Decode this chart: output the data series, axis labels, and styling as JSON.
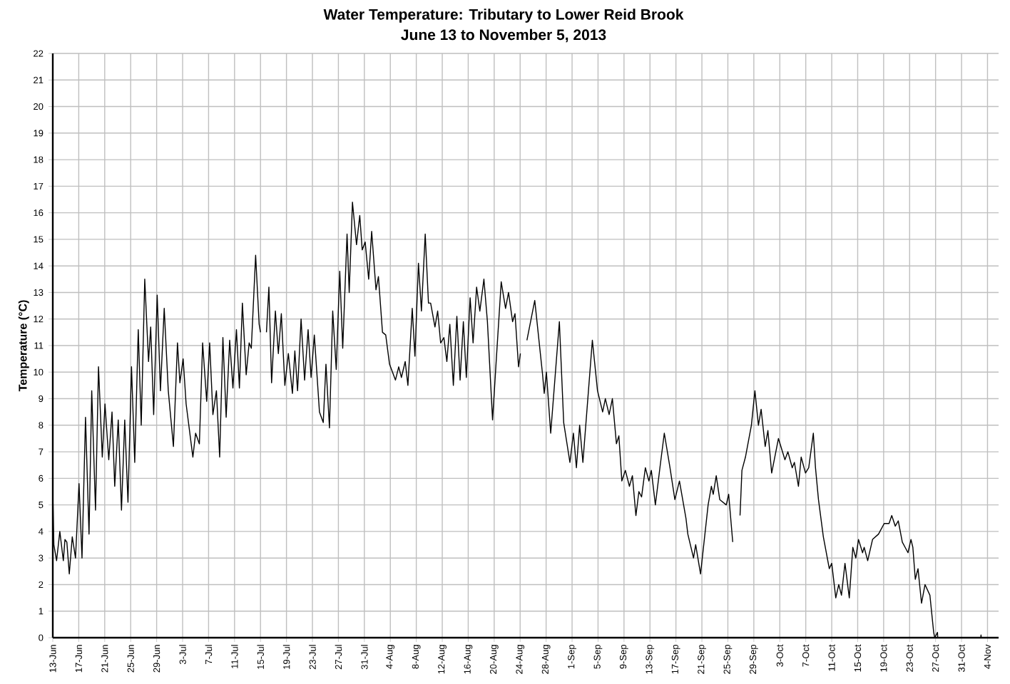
{
  "chart_data": {
    "type": "line",
    "title": "Water Temperature: Tributary to Lower Reid Brook",
    "subtitle": "June 13 to November 5, 2013",
    "ylabel": "Temperature (°C)",
    "color": "#000000",
    "grid": true,
    "xlim": [
      "2013-06-13",
      "2013-11-05T17:00"
    ],
    "ylim": [
      0,
      22
    ],
    "yticks": [
      0,
      1,
      2,
      3,
      4,
      5,
      6,
      7,
      8,
      9,
      10,
      11,
      12,
      13,
      14,
      15,
      16,
      17,
      18,
      19,
      20,
      21,
      22
    ],
    "xticks": [
      {
        "value": "2013-06-13",
        "label": "13-Jun"
      },
      {
        "value": "2013-06-17",
        "label": "17-Jun"
      },
      {
        "value": "2013-06-21",
        "label": "21-Jun"
      },
      {
        "value": "2013-06-25",
        "label": "25-Jun"
      },
      {
        "value": "2013-06-29",
        "label": "29-Jun"
      },
      {
        "value": "2013-07-03",
        "label": "3-Jul"
      },
      {
        "value": "2013-07-07",
        "label": "7-Jul"
      },
      {
        "value": "2013-07-11",
        "label": "11-Jul"
      },
      {
        "value": "2013-07-15",
        "label": "15-Jul"
      },
      {
        "value": "2013-07-19",
        "label": "19-Jul"
      },
      {
        "value": "2013-07-23",
        "label": "23-Jul"
      },
      {
        "value": "2013-07-27",
        "label": "27-Jul"
      },
      {
        "value": "2013-07-31",
        "label": "31-Jul"
      },
      {
        "value": "2013-08-04",
        "label": "4-Aug"
      },
      {
        "value": "2013-08-08",
        "label": "8-Aug"
      },
      {
        "value": "2013-08-12",
        "label": "12-Aug"
      },
      {
        "value": "2013-08-16",
        "label": "16-Aug"
      },
      {
        "value": "2013-08-20",
        "label": "20-Aug"
      },
      {
        "value": "2013-08-24",
        "label": "24-Aug"
      },
      {
        "value": "2013-08-28",
        "label": "28-Aug"
      },
      {
        "value": "2013-09-01",
        "label": "1-Sep"
      },
      {
        "value": "2013-09-05",
        "label": "5-Sep"
      },
      {
        "value": "2013-09-09",
        "label": "9-Sep"
      },
      {
        "value": "2013-09-13",
        "label": "13-Sep"
      },
      {
        "value": "2013-09-17",
        "label": "17-Sep"
      },
      {
        "value": "2013-09-21",
        "label": "21-Sep"
      },
      {
        "value": "2013-09-25",
        "label": "25-Sep"
      },
      {
        "value": "2013-09-29",
        "label": "29-Sep"
      },
      {
        "value": "2013-10-03",
        "label": "3-Oct"
      },
      {
        "value": "2013-10-07",
        "label": "7-Oct"
      },
      {
        "value": "2013-10-11",
        "label": "11-Oct"
      },
      {
        "value": "2013-10-15",
        "label": "15-Oct"
      },
      {
        "value": "2013-10-19",
        "label": "19-Oct"
      },
      {
        "value": "2013-10-23",
        "label": "23-Oct"
      },
      {
        "value": "2013-10-27",
        "label": "27-Oct"
      },
      {
        "value": "2013-10-31",
        "label": "31-Oct"
      },
      {
        "value": "2013-11-04",
        "label": "4-Nov"
      }
    ],
    "x": [
      "2013-06-13T00:00",
      "2013-06-13T04:00",
      "2013-06-13T14:00",
      "2013-06-14T02:00",
      "2013-06-14T15:00",
      "2013-06-14T21:00",
      "2013-06-15T04:00",
      "2013-06-15T13:00",
      "2013-06-16T00:00",
      "2013-06-16T12:00",
      "2013-06-17T01:00",
      "2013-06-17T12:00",
      "2013-06-18T01:00",
      "2013-06-18T14:00",
      "2013-06-19T00:00",
      "2013-06-19T14:00",
      "2013-06-20T01:00",
      "2013-06-20T15:00",
      "2013-06-21T01:00",
      "2013-06-21T15:00",
      "2013-06-22T03:00",
      "2013-06-22T13:00",
      "2013-06-23T02:00",
      "2013-06-23T14:00",
      "2013-06-24T02:00",
      "2013-06-24T14:00",
      "2013-06-25T03:00",
      "2013-06-25T15:00",
      "2013-06-26T04:00",
      "2013-06-26T15:00",
      "2013-06-27T04:00",
      "2013-06-27T18:00",
      "2013-06-28T02:00",
      "2013-06-28T13:00",
      "2013-06-29T02:00",
      "2013-06-29T14:00",
      "2013-06-30T04:00",
      "2013-06-30T19:00",
      "2013-07-01T14:00",
      "2013-07-02T05:00",
      "2013-07-02T14:00",
      "2013-07-03T02:00",
      "2013-07-03T13:00",
      "2013-07-04T14:00",
      "2013-07-05T00:00",
      "2013-07-05T14:00",
      "2013-07-06T02:00",
      "2013-07-06T17:00",
      "2013-07-07T04:00",
      "2013-07-07T16:00",
      "2013-07-08T05:00",
      "2013-07-08T17:00",
      "2013-07-09T05:00",
      "2013-07-09T17:00",
      "2013-07-10T06:00",
      "2013-07-10T18:00",
      "2013-07-11T07:00",
      "2013-07-11T18:00",
      "2013-07-12T05:00",
      "2013-07-12T19:00",
      "2013-07-13T06:00",
      "2013-07-13T14:00",
      "2013-07-14T06:00",
      "2013-07-14T19:00",
      "2013-07-15T00:00",
      "2013-07-15T11:00",
      "2013-07-15T22:00",
      "2013-07-16T07:00",
      "2013-07-16T17:00",
      "2013-07-17T07:00",
      "2013-07-17T18:00",
      "2013-07-18T05:00",
      "2013-07-18T18:00",
      "2013-07-19T07:00",
      "2013-07-19T22:00",
      "2013-07-20T07:00",
      "2013-07-20T17:00",
      "2013-07-21T06:00",
      "2013-07-21T19:00",
      "2013-07-22T08:00",
      "2013-07-22T19:00",
      "2013-07-23T07:00",
      "2013-07-24T02:00",
      "2013-07-24T16:00",
      "2013-07-25T02:00",
      "2013-07-25T15:00",
      "2013-07-26T03:00",
      "2013-07-26T16:00",
      "2013-07-27T05:00",
      "2013-07-27T16:00",
      "2013-07-28T08:00",
      "2013-07-28T16:00",
      "2013-07-29T04:00",
      "2013-07-29T19:00",
      "2013-07-30T07:00",
      "2013-07-30T16:00",
      "2013-07-31T03:00",
      "2013-07-31T16:00",
      "2013-08-01T03:00",
      "2013-08-01T19:00",
      "2013-08-02T04:00",
      "2013-08-02T19:00",
      "2013-08-03T07:00",
      "2013-08-03T21:00",
      "2013-08-04T19:00",
      "2013-08-05T07:00",
      "2013-08-05T17:00",
      "2013-08-06T07:00",
      "2013-08-06T17:00",
      "2013-08-07T09:00",
      "2013-08-07T19:00",
      "2013-08-08T08:00",
      "2013-08-08T19:00",
      "2013-08-09T09:00",
      "2013-08-09T21:00",
      "2013-08-10T05:00",
      "2013-08-10T21:00",
      "2013-08-11T07:00",
      "2013-08-11T18:00",
      "2013-08-12T06:00",
      "2013-08-12T17:00",
      "2013-08-13T04:00",
      "2013-08-13T17:00",
      "2013-08-14T06:00",
      "2013-08-14T18:00",
      "2013-08-15T06:00",
      "2013-08-15T17:00",
      "2013-08-16T07:00",
      "2013-08-16T18:00",
      "2013-08-17T07:00",
      "2013-08-17T19:00",
      "2013-08-18T10:00",
      "2013-08-18T23:00",
      "2013-08-19T18:00",
      "2013-08-20T08:00",
      "2013-08-21T02:00",
      "2013-08-21T18:00",
      "2013-08-22T05:00",
      "2013-08-22T20:00",
      "2013-08-23T05:00",
      "2013-08-23T18:00",
      "2013-08-24T01:00",
      "2013-08-24T13:00",
      "2013-08-25T01:00",
      "2013-08-26T06:00",
      "2013-08-27T11:00",
      "2013-08-27T17:00",
      "2013-08-28T01:00",
      "2013-08-28T17:00",
      "2013-08-30T01:00",
      "2013-08-30T17:00",
      "2013-08-31T16:00",
      "2013-09-01T05:00",
      "2013-09-01T16:00",
      "2013-09-02T04:00",
      "2013-09-02T16:00",
      "2013-09-04T03:00",
      "2013-09-04T22:00",
      "2013-09-05T17:00",
      "2013-09-06T03:00",
      "2013-09-06T17:00",
      "2013-09-07T05:00",
      "2013-09-07T20:00",
      "2013-09-08T05:00",
      "2013-09-08T16:00",
      "2013-09-09T05:00",
      "2013-09-09T20:00",
      "2013-09-10T07:00",
      "2013-09-10T20:00",
      "2013-09-11T07:00",
      "2013-09-11T17:00",
      "2013-09-12T07:00",
      "2013-09-12T20:00",
      "2013-09-13T05:00",
      "2013-09-13T20:00",
      "2013-09-14T14:00",
      "2013-09-15T05:00",
      "2013-09-16T02:00",
      "2013-09-16T20:00",
      "2013-09-17T13:00",
      "2013-09-18T13:00",
      "2013-09-18T20:00",
      "2013-09-19T17:00",
      "2013-09-20T01:00",
      "2013-09-20T19:00",
      "2013-09-21T23:00",
      "2013-09-22T11:00",
      "2013-09-22T18:00",
      "2013-09-23T05:00",
      "2013-09-23T18:00",
      "2013-09-24T18:00",
      "2013-09-25T03:00",
      "2013-09-25T18:00",
      "2013-09-26T09:00",
      "2013-09-26T21:00",
      "2013-09-27T04:00",
      "2013-09-27T17:00",
      "2013-09-28T15:00",
      "2013-09-29T04:00",
      "2013-09-29T17:00",
      "2013-09-30T03:00",
      "2013-09-30T18:00",
      "2013-10-01T04:00",
      "2013-10-01T18:00",
      "2013-10-02T19:00",
      "2013-10-03T19:00",
      "2013-10-04T06:00",
      "2013-10-04T22:00",
      "2013-10-05T06:00",
      "2013-10-05T21:00",
      "2013-10-06T07:00",
      "2013-10-06T23:00",
      "2013-10-07T11:00",
      "2013-10-08T04:00",
      "2013-10-08T12:00",
      "2013-10-08T23:00",
      "2013-10-09T17:00",
      "2013-10-10T15:00",
      "2013-10-11T00:00",
      "2013-10-11T15:00",
      "2013-10-12T02:00",
      "2013-10-12T12:00",
      "2013-10-13T01:00",
      "2013-10-13T17:00",
      "2013-10-14T06:00",
      "2013-10-14T17:00",
      "2013-10-15T03:00",
      "2013-10-15T18:00",
      "2013-10-16T00:00",
      "2013-10-16T13:00",
      "2013-10-17T07:00",
      "2013-10-18T05:00",
      "2013-10-19T02:00",
      "2013-10-19T20:00",
      "2013-10-20T06:00",
      "2013-10-20T19:00",
      "2013-10-21T06:00",
      "2013-10-21T21:00",
      "2013-10-22T18:00",
      "2013-10-23T05:00",
      "2013-10-23T12:00",
      "2013-10-23T21:00",
      "2013-10-24T07:00",
      "2013-10-24T20:00",
      "2013-10-25T09:00",
      "2013-10-26T03:00",
      "2013-10-26T17:00",
      "2013-10-26T21:00",
      "2013-10-27T07:00",
      "2013-10-27T08:00",
      "2013-11-02T23:00",
      "2013-11-03T00:00",
      "2013-11-03T01:00",
      "2013-11-05T04:00"
    ],
    "values": [
      5.5,
      3.5,
      2.9,
      4.0,
      2.9,
      3.7,
      3.6,
      2.4,
      3.8,
      3.0,
      5.8,
      3.0,
      8.3,
      3.9,
      9.3,
      4.8,
      10.2,
      6.8,
      8.8,
      6.7,
      8.5,
      5.7,
      8.2,
      4.8,
      8.2,
      5.1,
      10.2,
      6.6,
      11.6,
      8.0,
      13.5,
      10.4,
      11.7,
      8.4,
      12.9,
      9.3,
      12.4,
      9.3,
      7.2,
      11.1,
      9.6,
      10.5,
      8.8,
      6.8,
      7.7,
      7.3,
      11.1,
      8.9,
      11.1,
      8.4,
      9.3,
      6.8,
      11.3,
      8.3,
      11.2,
      9.4,
      11.6,
      9.4,
      12.6,
      9.9,
      11.1,
      10.9,
      14.4,
      11.8,
      11.5,
      null,
      11.5,
      13.2,
      9.6,
      12.3,
      10.7,
      12.2,
      9.5,
      10.7,
      9.2,
      10.8,
      9.3,
      12.0,
      9.7,
      11.6,
      9.8,
      11.4,
      8.5,
      8.1,
      10.3,
      7.9,
      12.3,
      10.1,
      13.8,
      10.9,
      15.2,
      13.0,
      16.4,
      14.8,
      15.9,
      14.6,
      14.9,
      13.5,
      15.3,
      13.1,
      13.6,
      11.5,
      11.4,
      10.3,
      9.7,
      10.2,
      9.8,
      10.4,
      9.5,
      12.4,
      10.6,
      14.1,
      12.3,
      15.2,
      12.6,
      12.6,
      11.7,
      12.3,
      11.1,
      11.3,
      10.4,
      11.8,
      9.5,
      12.1,
      9.7,
      11.9,
      9.8,
      12.8,
      11.1,
      13.2,
      12.3,
      13.5,
      11.9,
      8.2,
      10.5,
      13.4,
      12.4,
      13.0,
      11.9,
      12.2,
      10.2,
      10.7,
      null,
      11.2,
      12.7,
      9.9,
      9.2,
      10.0,
      7.7,
      11.9,
      8.1,
      6.6,
      7.7,
      6.4,
      8.0,
      6.6,
      11.2,
      9.3,
      8.5,
      9.0,
      8.4,
      9.0,
      7.3,
      7.6,
      5.9,
      6.3,
      5.7,
      6.1,
      4.6,
      5.5,
      5.3,
      6.4,
      5.9,
      6.3,
      5.0,
      6.5,
      7.7,
      6.4,
      5.2,
      5.9,
      4.5,
      3.9,
      3.0,
      3.5,
      2.4,
      5.0,
      5.7,
      5.4,
      6.1,
      5.2,
      5.0,
      5.4,
      3.6,
      null,
      4.6,
      6.3,
      6.8,
      8.0,
      9.3,
      8.0,
      8.6,
      7.2,
      7.8,
      6.2,
      7.5,
      6.7,
      7.0,
      6.4,
      6.6,
      5.7,
      6.8,
      6.2,
      6.4,
      7.7,
      6.4,
      5.2,
      3.8,
      2.6,
      2.8,
      1.5,
      2.0,
      1.6,
      2.8,
      1.5,
      3.4,
      3.0,
      3.7,
      3.2,
      3.4,
      2.9,
      3.7,
      3.9,
      4.3,
      4.3,
      4.6,
      4.2,
      4.4,
      3.6,
      3.2,
      3.7,
      3.4,
      2.2,
      2.6,
      1.3,
      2.0,
      1.6,
      0.2,
      0,
      0.2,
      0,
      0,
      0.1,
      0,
      0
    ]
  }
}
